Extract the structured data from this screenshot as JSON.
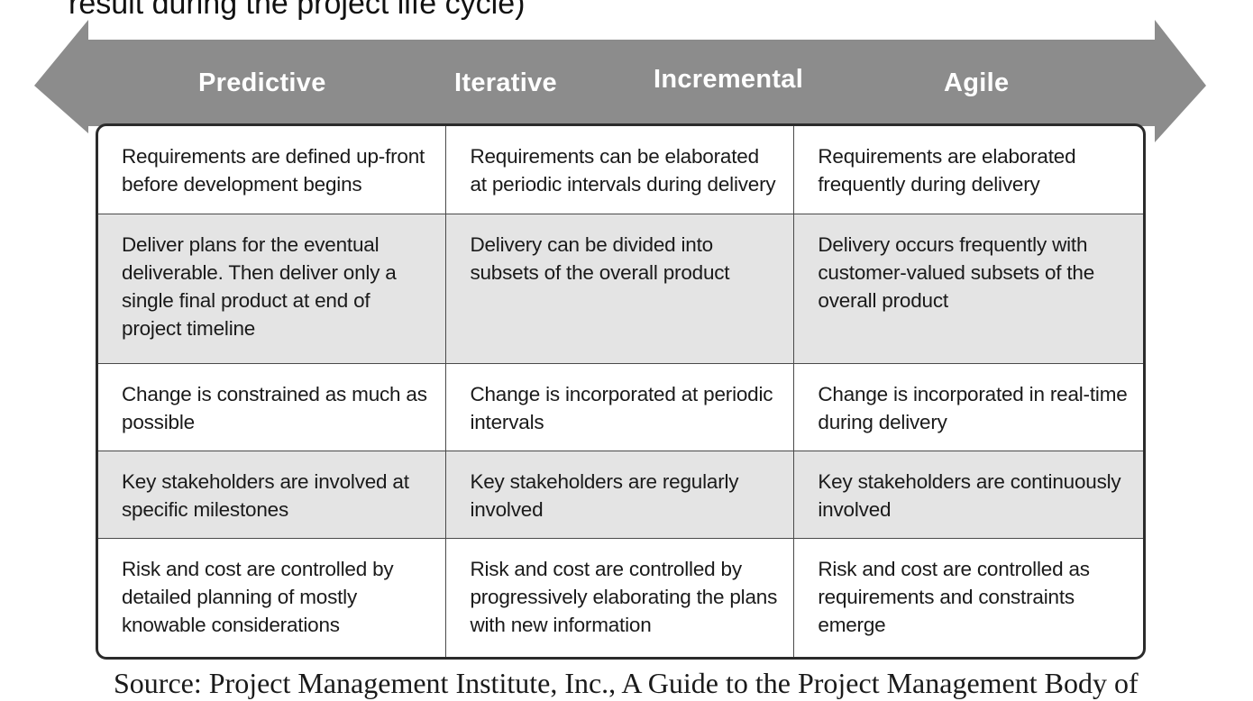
{
  "caption": {
    "text": "result during the project life cycle)"
  },
  "continuum": {
    "arrow_color": "#8c8c8c",
    "labels": [
      "Predictive",
      "Iterative",
      "Incremental",
      "Agile"
    ]
  },
  "table": {
    "rows": [
      {
        "shaded": false,
        "cells": [
          "Requirements are defined up-front before development begins",
          "Requirements can be elaborated at periodic intervals during delivery",
          "Requirements are elaborated frequently during delivery"
        ]
      },
      {
        "shaded": true,
        "cells": [
          "Deliver plans for the eventual deliverable. Then deliver only a single final product at end of project timeline",
          "Delivery can be divided into subsets of the overall product",
          "Delivery occurs frequently with customer-valued subsets of the overall product"
        ]
      },
      {
        "shaded": false,
        "cells": [
          "Change is constrained as much as possible",
          "Change is incorporated at periodic intervals",
          "Change is incorporated in real-time during delivery"
        ]
      },
      {
        "shaded": true,
        "cells": [
          "Key stakeholders are involved at specific milestones",
          "Key stakeholders are regularly involved",
          "Key stakeholders are continuously involved"
        ]
      },
      {
        "shaded": false,
        "cells": [
          "Risk and cost are controlled by detailed planning of mostly knowable considerations",
          "Risk and cost are controlled by progressively elaborating the plans with new information",
          "Risk and cost are controlled as requirements and constraints emerge"
        ]
      }
    ],
    "shade_color": "#e4e4e4",
    "border_color": "#2b2b2b"
  },
  "source": {
    "text": "Source: Project Management Institute, Inc., A Guide to the Project Management Body of"
  }
}
